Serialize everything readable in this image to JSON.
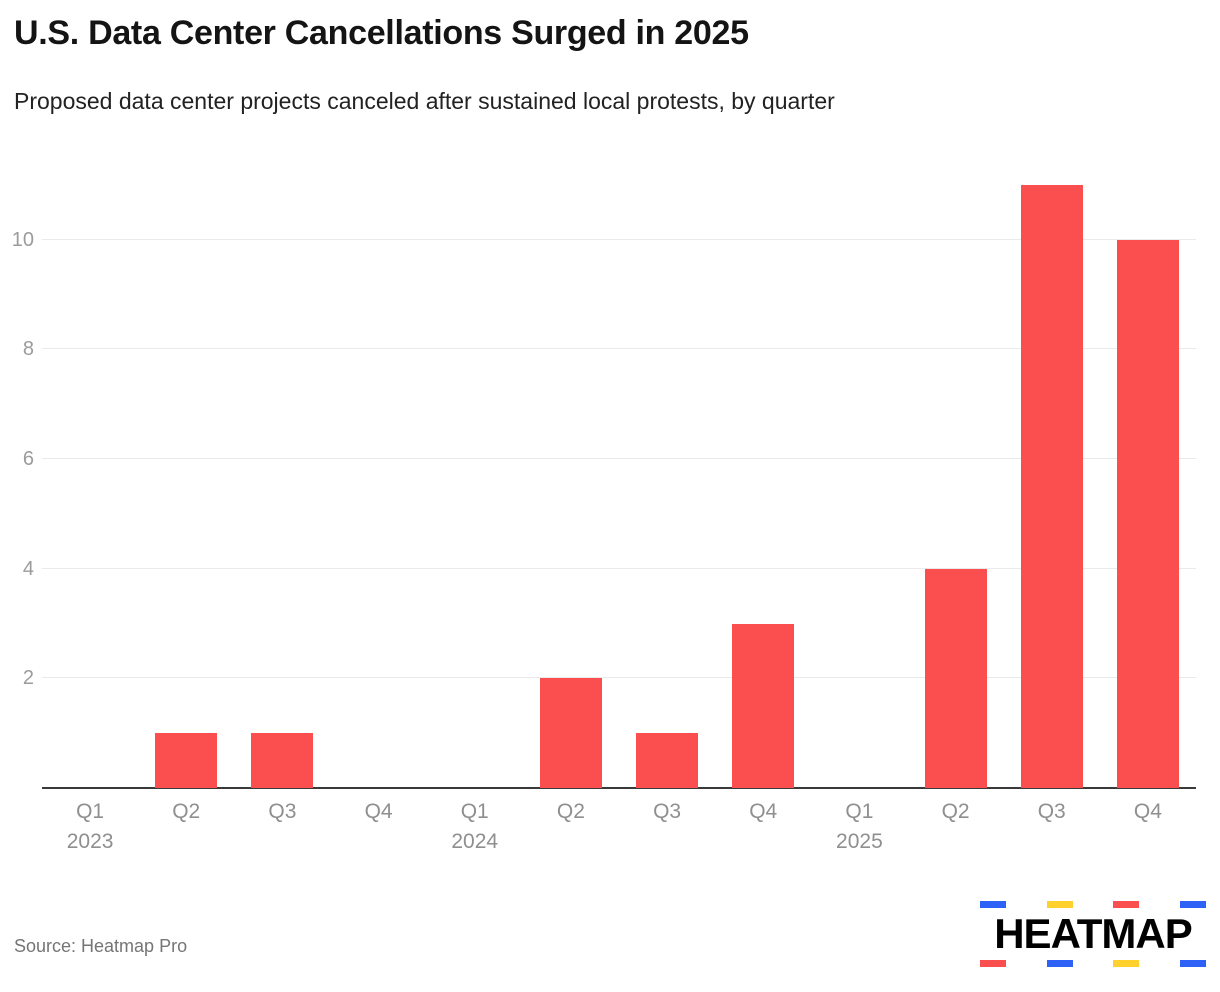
{
  "header": {
    "title": "U.S. Data Center Cancellations Surged in 2025",
    "subtitle": "Proposed data center projects canceled after sustained local protests, by quarter"
  },
  "chart_data": {
    "type": "bar",
    "title": "U.S. Data Center Cancellations Surged in 2025",
    "subtitle": "Proposed data center projects canceled after sustained local protests, by quarter",
    "categories": [
      "Q1 2023",
      "Q2 2023",
      "Q3 2023",
      "Q4 2023",
      "Q1 2024",
      "Q2 2024",
      "Q3 2024",
      "Q4 2024",
      "Q1 2025",
      "Q2 2025",
      "Q3 2025",
      "Q4 2025"
    ],
    "x_tick_labels": [
      "Q1",
      "Q2",
      "Q3",
      "Q4",
      "Q1",
      "Q2",
      "Q3",
      "Q4",
      "Q1",
      "Q2",
      "Q3",
      "Q4"
    ],
    "year_labels": [
      {
        "slot": 0,
        "label": "2023"
      },
      {
        "slot": 4,
        "label": "2024"
      },
      {
        "slot": 8,
        "label": "2025"
      }
    ],
    "values": [
      0,
      1,
      1,
      0,
      0,
      2,
      1,
      3,
      0,
      4,
      11,
      10
    ],
    "y_ticks": [
      2,
      4,
      6,
      8,
      10
    ],
    "ylim": [
      0,
      11
    ],
    "xlabel": "",
    "ylabel": "",
    "grid": true,
    "legend": false,
    "bar_color": "#fb4f4f"
  },
  "footer": {
    "source": "Source: Heatmap Pro",
    "logo": {
      "text": "HEATMAP",
      "dash_colors_top": [
        "#2e62f6",
        "#ffd02e",
        "#fb4f4f",
        "#2e62f6"
      ],
      "dash_colors_bottom": [
        "#fb4f4f",
        "#2e62f6",
        "#ffd02e",
        "#2e62f6"
      ]
    }
  }
}
